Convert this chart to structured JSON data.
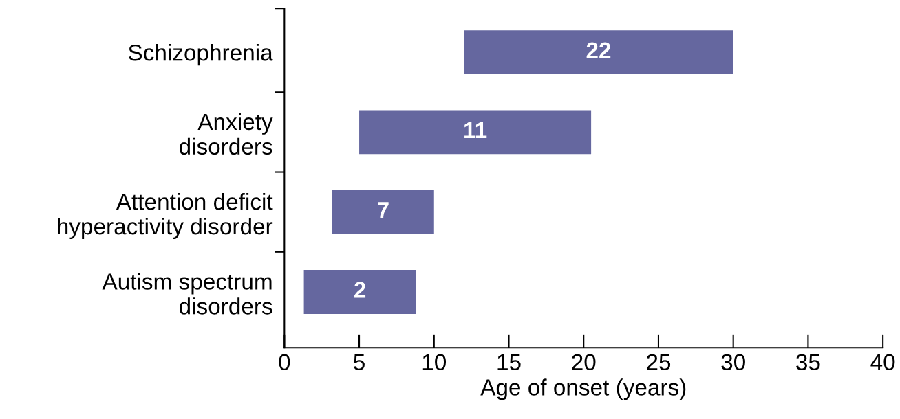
{
  "chart_data": {
    "type": "bar",
    "orientation": "horizontal",
    "xlabel": "Age of onset (years)",
    "categories": [
      "Schizophrenia",
      "Anxiety\ndisorders",
      "Attention deficit\nhyperactivity disorder",
      "Autism spectrum\ndisorders"
    ],
    "base": [
      12,
      5,
      3.2,
      1.3
    ],
    "values": [
      18,
      15.5,
      6.8,
      7.5
    ],
    "color": "#65679f",
    "xlim": [
      0,
      40
    ],
    "xticks": [
      0,
      5,
      10,
      15,
      20,
      25,
      30,
      35,
      40
    ],
    "grid": false,
    "annotations": [
      "22",
      "11",
      "7",
      "2"
    ]
  }
}
